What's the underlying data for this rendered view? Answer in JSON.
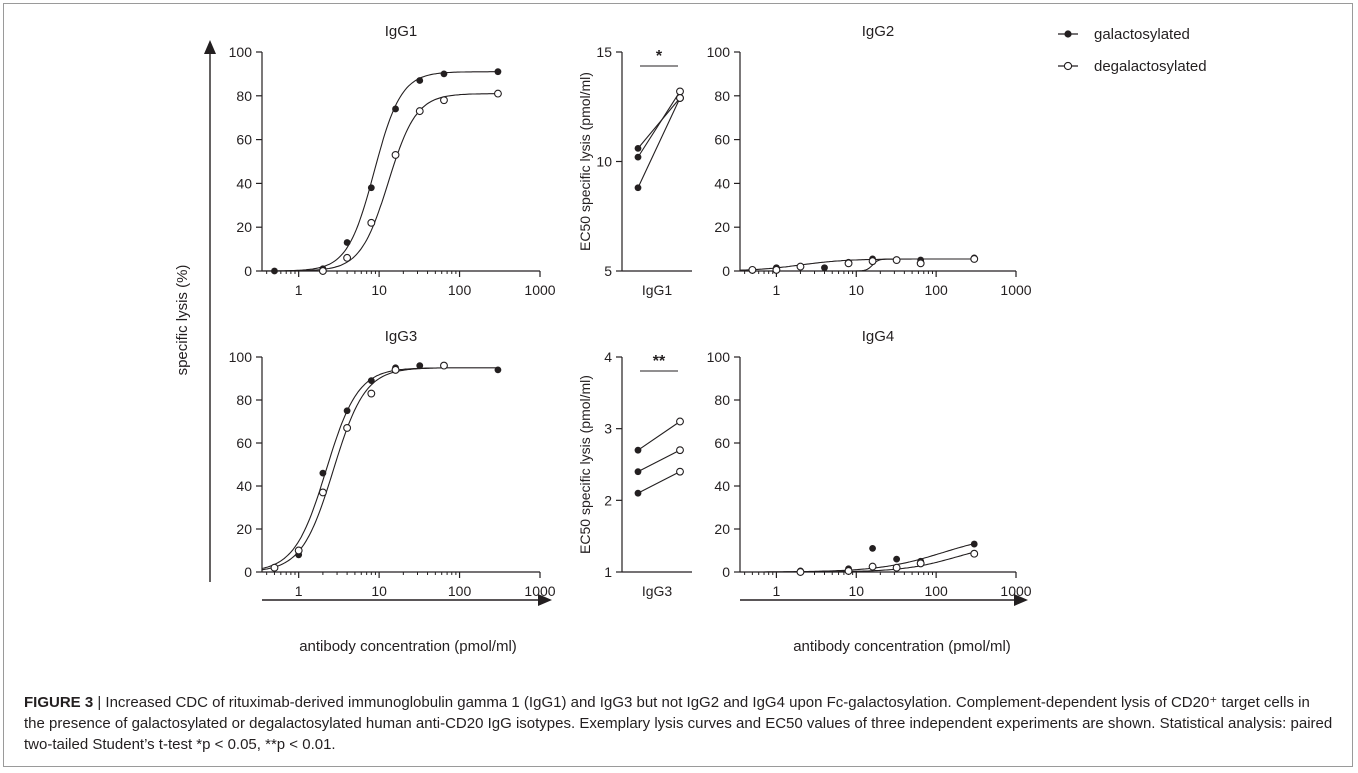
{
  "figure": {
    "y_label": "specific lysis (%)",
    "x_label_left": "antibody concentration (pmol/ml)",
    "x_label_right": "antibody concentration (pmol/ml)"
  },
  "legend": {
    "items": [
      {
        "label": "galactosylated",
        "marker": "filled"
      },
      {
        "label": "degalactosylated",
        "marker": "open"
      }
    ]
  },
  "colors": {
    "ink": "#231f20",
    "frame": "#9a9a9a"
  },
  "chart_data": [
    {
      "id": "igg1_curve",
      "type": "line",
      "title": "IgG1",
      "x_scale": "log",
      "xlim": [
        0.35,
        1000
      ],
      "ylim": [
        0,
        100
      ],
      "x_ticks": [
        1,
        10,
        100,
        1000
      ],
      "x_tick_labels": [
        "1",
        "10",
        "100",
        "1000"
      ],
      "y_ticks": [
        0,
        20,
        40,
        60,
        80,
        100
      ],
      "y_tick_labels": [
        "0",
        "20",
        "40",
        "60",
        "80",
        "100"
      ],
      "series": [
        {
          "marker": "filled",
          "x": [
            0.5,
            2,
            4,
            8,
            16,
            32,
            64,
            300
          ],
          "y": [
            0,
            1,
            13,
            38,
            74,
            87,
            90,
            91
          ],
          "fit": {
            "bottom": 0,
            "top": 91,
            "ec50": 8.7,
            "hill": 2.6
          }
        },
        {
          "marker": "open",
          "x": [
            2,
            4,
            8,
            16,
            32,
            64,
            300
          ],
          "y": [
            0,
            6,
            22,
            53,
            73,
            78,
            81
          ],
          "fit": {
            "bottom": 0,
            "top": 81,
            "ec50": 13,
            "hill": 2.5
          }
        }
      ]
    },
    {
      "id": "igg1_ec50",
      "type": "scatter",
      "title": "IgG1",
      "ylabel": "EC50 specific lysis (pmol/ml)",
      "ylim": [
        5,
        15
      ],
      "y_ticks": [
        5,
        10,
        15
      ],
      "y_tick_labels": [
        "5",
        "10",
        "15"
      ],
      "significance": "*",
      "pairs": [
        {
          "galactosylated": 10.6,
          "degalactosylated": 12.9
        },
        {
          "galactosylated": 10.2,
          "degalactosylated": 13.2
        },
        {
          "galactosylated": 8.8,
          "degalactosylated": 12.9
        }
      ]
    },
    {
      "id": "igg2_curve",
      "type": "line",
      "title": "IgG2",
      "x_scale": "log",
      "xlim": [
        0.35,
        1000
      ],
      "ylim": [
        0,
        100
      ],
      "x_ticks": [
        1,
        10,
        100,
        1000
      ],
      "x_tick_labels": [
        "1",
        "10",
        "100",
        "1000"
      ],
      "y_ticks": [
        0,
        20,
        40,
        60,
        80,
        100
      ],
      "y_tick_labels": [
        "0",
        "20",
        "40",
        "60",
        "80",
        "100"
      ],
      "series": [
        {
          "marker": "filled",
          "x": [
            1,
            2,
            4,
            8,
            16,
            32,
            64,
            300
          ],
          "y": [
            1.5,
            2,
            1.5,
            4,
            5.5,
            5,
            5,
            6
          ],
          "fit": {
            "bottom": 0,
            "top": 5.5,
            "ec50": 2,
            "hill": 1.5
          }
        },
        {
          "marker": "open",
          "x": [
            0.5,
            1,
            2,
            8,
            16,
            32,
            64,
            300
          ],
          "y": [
            0.5,
            0.5,
            2,
            3.5,
            4.5,
            5,
            3.5,
            5.5
          ],
          "fit": {
            "bottom": 0,
            "top": 5.5,
            "ec50": 16,
            "hill": 12
          }
        }
      ]
    },
    {
      "id": "igg3_curve",
      "type": "line",
      "title": "IgG3",
      "x_scale": "log",
      "xlim": [
        0.35,
        1000
      ],
      "ylim": [
        0,
        100
      ],
      "x_ticks": [
        1,
        10,
        100,
        1000
      ],
      "x_tick_labels": [
        "1",
        "10",
        "100",
        "1000"
      ],
      "y_ticks": [
        0,
        20,
        40,
        60,
        80,
        100
      ],
      "y_tick_labels": [
        "0",
        "20",
        "40",
        "60",
        "80",
        "100"
      ],
      "series": [
        {
          "marker": "filled",
          "x": [
            1,
            2,
            4,
            8,
            16,
            32,
            64,
            300
          ],
          "y": [
            8,
            46,
            75,
            89,
            95,
            96,
            96,
            94
          ],
          "fit": {
            "bottom": 0,
            "top": 95,
            "ec50": 2.2,
            "hill": 2.2
          }
        },
        {
          "marker": "open",
          "x": [
            0.5,
            1,
            2,
            4,
            8,
            16,
            64
          ],
          "y": [
            2,
            10,
            37,
            67,
            83,
            94,
            96
          ],
          "fit": {
            "bottom": 0,
            "top": 95,
            "ec50": 2.7,
            "hill": 2.2
          }
        }
      ]
    },
    {
      "id": "igg3_ec50",
      "type": "scatter",
      "title": "IgG3",
      "ylabel": "EC50 specific lysis (pmol/ml)",
      "ylim": [
        1,
        4
      ],
      "y_ticks": [
        1,
        2,
        3,
        4
      ],
      "y_tick_labels": [
        "1",
        "2",
        "3",
        "4"
      ],
      "significance": "**",
      "pairs": [
        {
          "galactosylated": 2.7,
          "degalactosylated": 3.1
        },
        {
          "galactosylated": 2.4,
          "degalactosylated": 2.7
        },
        {
          "galactosylated": 2.1,
          "degalactosylated": 2.4
        }
      ]
    },
    {
      "id": "igg4_curve",
      "type": "line",
      "title": "IgG4",
      "x_scale": "log",
      "xlim": [
        0.35,
        1000
      ],
      "ylim": [
        0,
        100
      ],
      "x_ticks": [
        1,
        10,
        100,
        1000
      ],
      "x_tick_labels": [
        "1",
        "10",
        "100",
        "1000"
      ],
      "y_ticks": [
        0,
        20,
        40,
        60,
        80,
        100
      ],
      "y_tick_labels": [
        "0",
        "20",
        "40",
        "60",
        "80",
        "100"
      ],
      "series": [
        {
          "marker": "filled",
          "x": [
            2,
            8,
            16,
            32,
            64,
            300
          ],
          "y": [
            0.5,
            1.5,
            11,
            6,
            5,
            13
          ],
          "fit": {
            "bottom": 0,
            "top": 18,
            "ec50": 120,
            "hill": 1.1
          }
        },
        {
          "marker": "open",
          "x": [
            2,
            8,
            16,
            32,
            64,
            300
          ],
          "y": [
            0,
            0.5,
            2.5,
            2,
            4,
            8.5
          ],
          "fit": {
            "bottom": 0,
            "top": 14,
            "ec50": 180,
            "hill": 1.3
          }
        }
      ]
    }
  ],
  "caption": {
    "label": "FIGURE 3",
    "separator": " | ",
    "text": "Increased CDC of rituximab-derived immunoglobulin gamma 1 (IgG1) and IgG3 but not IgG2 and IgG4 upon Fc-galactosylation. Complement-dependent lysis of CD20⁺ target cells in the presence of galactosylated or degalactosylated human anti-CD20 IgG isotypes. Exemplary lysis curves and EC50 values of three independent experiments are shown. Statistical analysis: paired two-tailed Student’s t-test *p < 0.05, **p < 0.01."
  }
}
